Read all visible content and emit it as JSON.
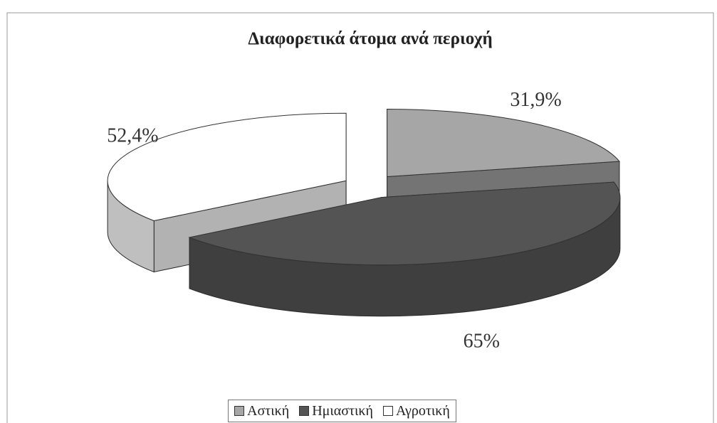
{
  "chart_data": {
    "type": "pie3d",
    "title": "Διαφορετικά άτομα ανά περιοχή",
    "categories": [
      "Αστική",
      "Ημιαστική",
      "Αγροτική"
    ],
    "values": [
      31.9,
      65,
      52.4
    ],
    "value_labels": [
      "31,9%",
      "65%",
      "52,4%"
    ],
    "colors": [
      "#a6a6a6",
      "#545454",
      "#ffffff"
    ],
    "legend": "bottom"
  }
}
